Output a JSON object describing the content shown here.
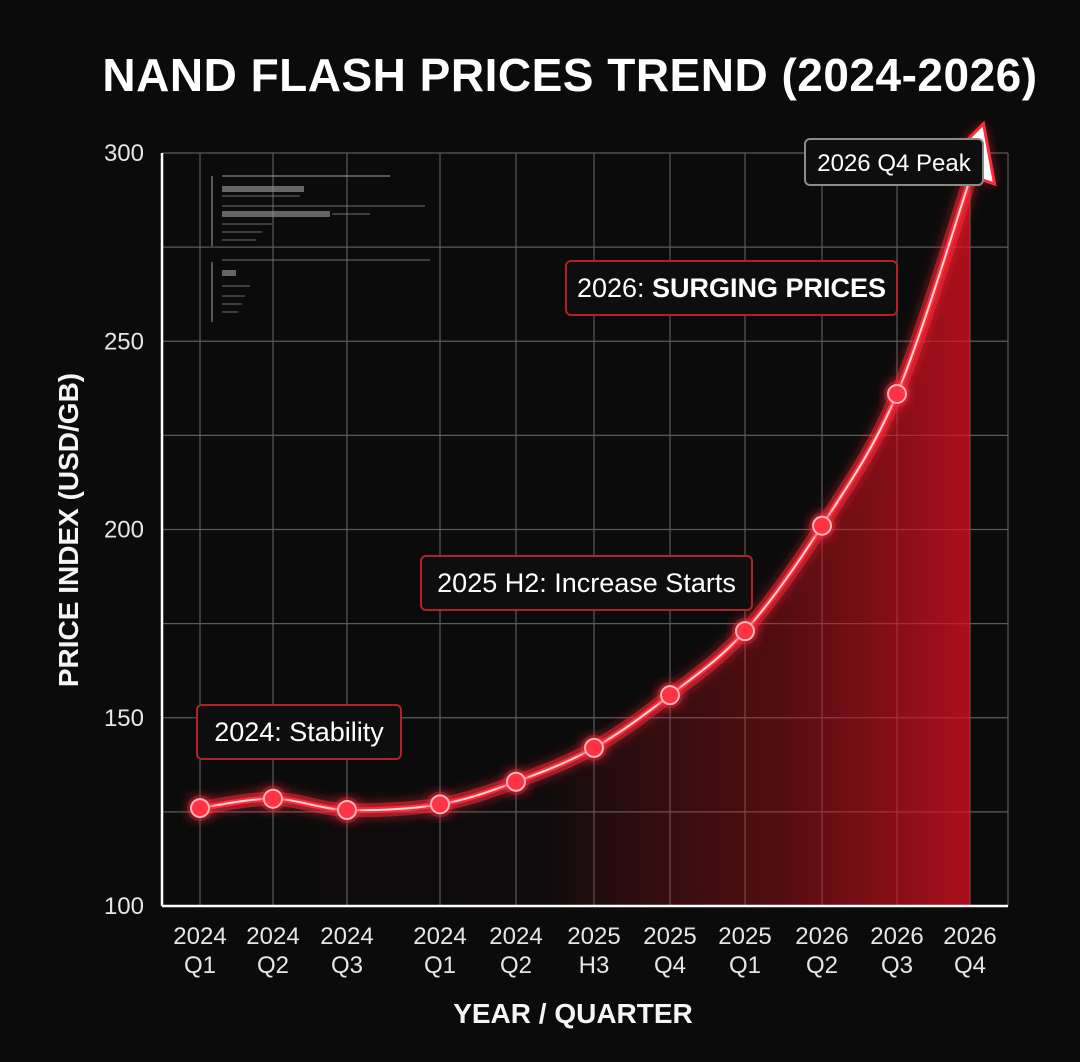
{
  "title": "NAND FLASH PRICES TREND (2024-2026)",
  "chart_data": {
    "type": "line",
    "title": "NAND FLASH PRICES TREND (2024-2026)",
    "xlabel": "YEAR / QUARTER",
    "ylabel": "PRICE INDEX (USD/GB)",
    "ylim": [
      100,
      300
    ],
    "yticks": [
      100,
      150,
      200,
      250,
      300
    ],
    "grid": true,
    "legend": "none",
    "categories": [
      [
        "2024",
        "Q1"
      ],
      [
        "2024",
        "Q2"
      ],
      [
        "2024",
        "Q3"
      ],
      [
        "2024",
        "Q1"
      ],
      [
        "2024",
        "Q2"
      ],
      [
        "2025",
        "H3"
      ],
      [
        "2025",
        "Q4"
      ],
      [
        "2025",
        "Q1"
      ],
      [
        "2026",
        "Q2"
      ],
      [
        "2026",
        "Q3"
      ],
      [
        "2026",
        "Q4"
      ]
    ],
    "values": [
      126,
      128.5,
      125.5,
      127,
      133,
      142,
      156,
      173,
      201,
      236,
      293
    ],
    "line_color": "#ff2a3a",
    "annotations": [
      {
        "text": "2024: Stability",
        "at_index": 1
      },
      {
        "text_prefix": "2025 H2: ",
        "text": "Increase Starts",
        "at_index": 6
      },
      {
        "text_prefix": "2026: ",
        "text": "SURGING PRICES",
        "at_index": 9
      },
      {
        "text": "2026 Q4 Peak",
        "at_index": 10
      }
    ]
  }
}
